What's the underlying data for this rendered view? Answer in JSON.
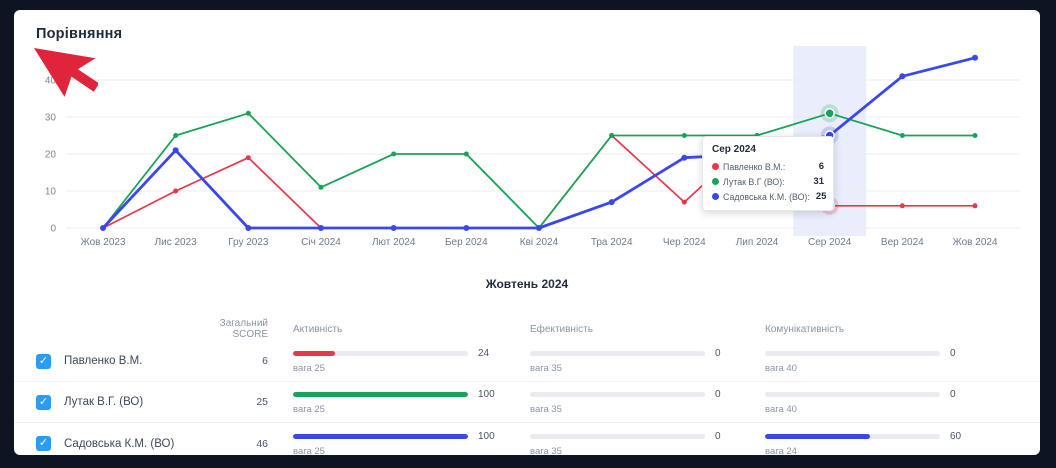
{
  "card": {
    "title": "Порівняння"
  },
  "chart_data": {
    "type": "line",
    "title": "Порівняння",
    "x": [
      "Жов 2023",
      "Лис 2023",
      "Гру 2023",
      "Січ 2024",
      "Лют 2024",
      "Бер 2024",
      "Кві 2024",
      "Тра 2024",
      "Чер 2024",
      "Лип 2024",
      "Сер 2024",
      "Вер 2024",
      "Жов 2024"
    ],
    "series": [
      {
        "name": "Павленко В.М.",
        "color": "#e7384b",
        "values": [
          0,
          10,
          19,
          0,
          0,
          0,
          0,
          25,
          7,
          25,
          6,
          6,
          6
        ]
      },
      {
        "name": "Лутак В.Г (ВО)",
        "color": "#17a45a",
        "values": [
          0,
          25,
          31,
          11,
          20,
          20,
          0,
          25,
          25,
          25,
          31,
          25,
          25
        ]
      },
      {
        "name": "Садовська К.М. (ВО)",
        "color": "#3a47ed",
        "values": [
          0,
          21,
          0,
          0,
          0,
          0,
          0,
          7,
          19,
          20,
          25,
          41,
          46
        ]
      }
    ],
    "ylim": [
      0,
      40
    ],
    "yticks": [
      0,
      10,
      20,
      30,
      40
    ],
    "grid": true,
    "legend": "none",
    "highlighted_x": "Сер 2024",
    "highlight_band_color": "#eaedfb"
  },
  "tooltip": {
    "title": "Сер 2024",
    "rows": [
      {
        "label": "Павленко В.М.:",
        "value": "6",
        "color": "#e7384b"
      },
      {
        "label": "Лутак В.Г (ВО):",
        "value": "31",
        "color": "#17a45a"
      },
      {
        "label": "Садовська К.М. (ВО):",
        "value": "25",
        "color": "#3a47ed"
      }
    ]
  },
  "period_title": "Жовтень 2024",
  "table": {
    "headers": {
      "score": "Загальний SCORE",
      "activity": "Активність",
      "efficiency": "Ефективність",
      "communication": "Комунікативність"
    },
    "weight_prefix": "вага",
    "check_glyph": "✓",
    "rows": [
      {
        "name": "Павленко В.М.",
        "checked": true,
        "color": "#e7384b",
        "score": "6",
        "activity": {
          "value": 24,
          "weight": 25
        },
        "efficiency": {
          "value": 0,
          "weight": 35
        },
        "communication": {
          "value": 0,
          "weight": 40
        }
      },
      {
        "name": "Лутак В.Г. (ВО)",
        "checked": true,
        "color": "#17a45a",
        "score": "25",
        "activity": {
          "value": 100,
          "weight": 25
        },
        "efficiency": {
          "value": 0,
          "weight": 35
        },
        "communication": {
          "value": 0,
          "weight": 40
        }
      },
      {
        "name": "Садовська К.М. (ВО)",
        "checked": true,
        "color": "#3a47ed",
        "score": "46",
        "activity": {
          "value": 100,
          "weight": 25
        },
        "efficiency": {
          "value": 0,
          "weight": 35
        },
        "communication": {
          "value": 60,
          "weight": 24
        }
      }
    ]
  }
}
